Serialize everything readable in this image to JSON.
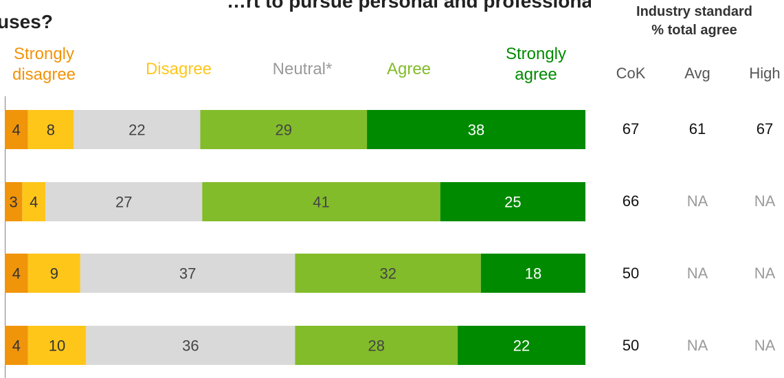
{
  "title": {
    "line1": "…rt to pursue personal and professional",
    "line2": "uses?"
  },
  "legend": {
    "strongly_disagree": "Strongly disagree",
    "disagree": "Disagree",
    "neutral": "Neutral*",
    "agree": "Agree",
    "strongly_agree": "Strongly agree"
  },
  "colors": {
    "strongly_disagree": "#F0940A",
    "disagree": "#FFC61A",
    "neutral": "#D9D9D9",
    "agree": "#82BC2A",
    "strongly_agree": "#008A00",
    "na_text": "#9A9A9A"
  },
  "industry": {
    "title_line1": "Industry standard",
    "title_line2": "% total agree",
    "columns": [
      "CoK",
      "Avg",
      "High"
    ],
    "rows": [
      [
        "67",
        "61",
        "67"
      ],
      [
        "66",
        "NA",
        "NA"
      ],
      [
        "50",
        "NA",
        "NA"
      ],
      [
        "50",
        "NA",
        "NA"
      ]
    ]
  },
  "chart_data": {
    "type": "bar",
    "orientation": "horizontal",
    "stacked": true,
    "categories": [
      "",
      "",
      "",
      ""
    ],
    "series": [
      {
        "name": "Strongly disagree",
        "values": [
          4,
          3,
          4,
          4
        ]
      },
      {
        "name": "Disagree",
        "values": [
          8,
          4,
          9,
          10
        ]
      },
      {
        "name": "Neutral*",
        "values": [
          22,
          27,
          37,
          36
        ]
      },
      {
        "name": "Agree",
        "values": [
          29,
          41,
          32,
          28
        ]
      },
      {
        "name": "Strongly agree",
        "values": [
          38,
          25,
          18,
          22
        ]
      }
    ],
    "legend": "top",
    "grid": false
  }
}
